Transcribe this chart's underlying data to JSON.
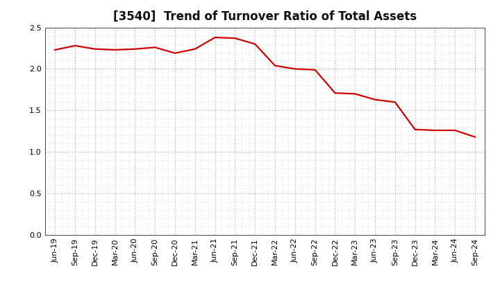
{
  "title": "[3540]  Trend of Turnover Ratio of Total Assets",
  "x_labels": [
    "Jun-19",
    "Sep-19",
    "Dec-19",
    "Mar-20",
    "Jun-20",
    "Sep-20",
    "Dec-20",
    "Mar-21",
    "Jun-21",
    "Sep-21",
    "Dec-21",
    "Mar-22",
    "Jun-22",
    "Sep-22",
    "Dec-22",
    "Mar-23",
    "Jun-23",
    "Sep-23",
    "Dec-23",
    "Mar-24",
    "Jun-24",
    "Sep-24"
  ],
  "y_values": [
    2.23,
    2.28,
    2.24,
    2.23,
    2.24,
    2.26,
    2.19,
    2.24,
    2.38,
    2.37,
    2.3,
    2.04,
    2.0,
    1.99,
    1.71,
    1.7,
    1.63,
    1.6,
    1.27,
    1.26,
    1.26,
    1.18
  ],
  "line_color": "#cc0000",
  "line_width": 1.6,
  "ylim": [
    0.0,
    2.5
  ],
  "yticks": [
    0.0,
    0.5,
    1.0,
    1.5,
    2.0,
    2.5
  ],
  "major_grid_color": "#aaaaaa",
  "minor_grid_color": "#cccccc",
  "title_fontsize": 12,
  "tick_fontsize": 8,
  "background_color": "#ffffff"
}
